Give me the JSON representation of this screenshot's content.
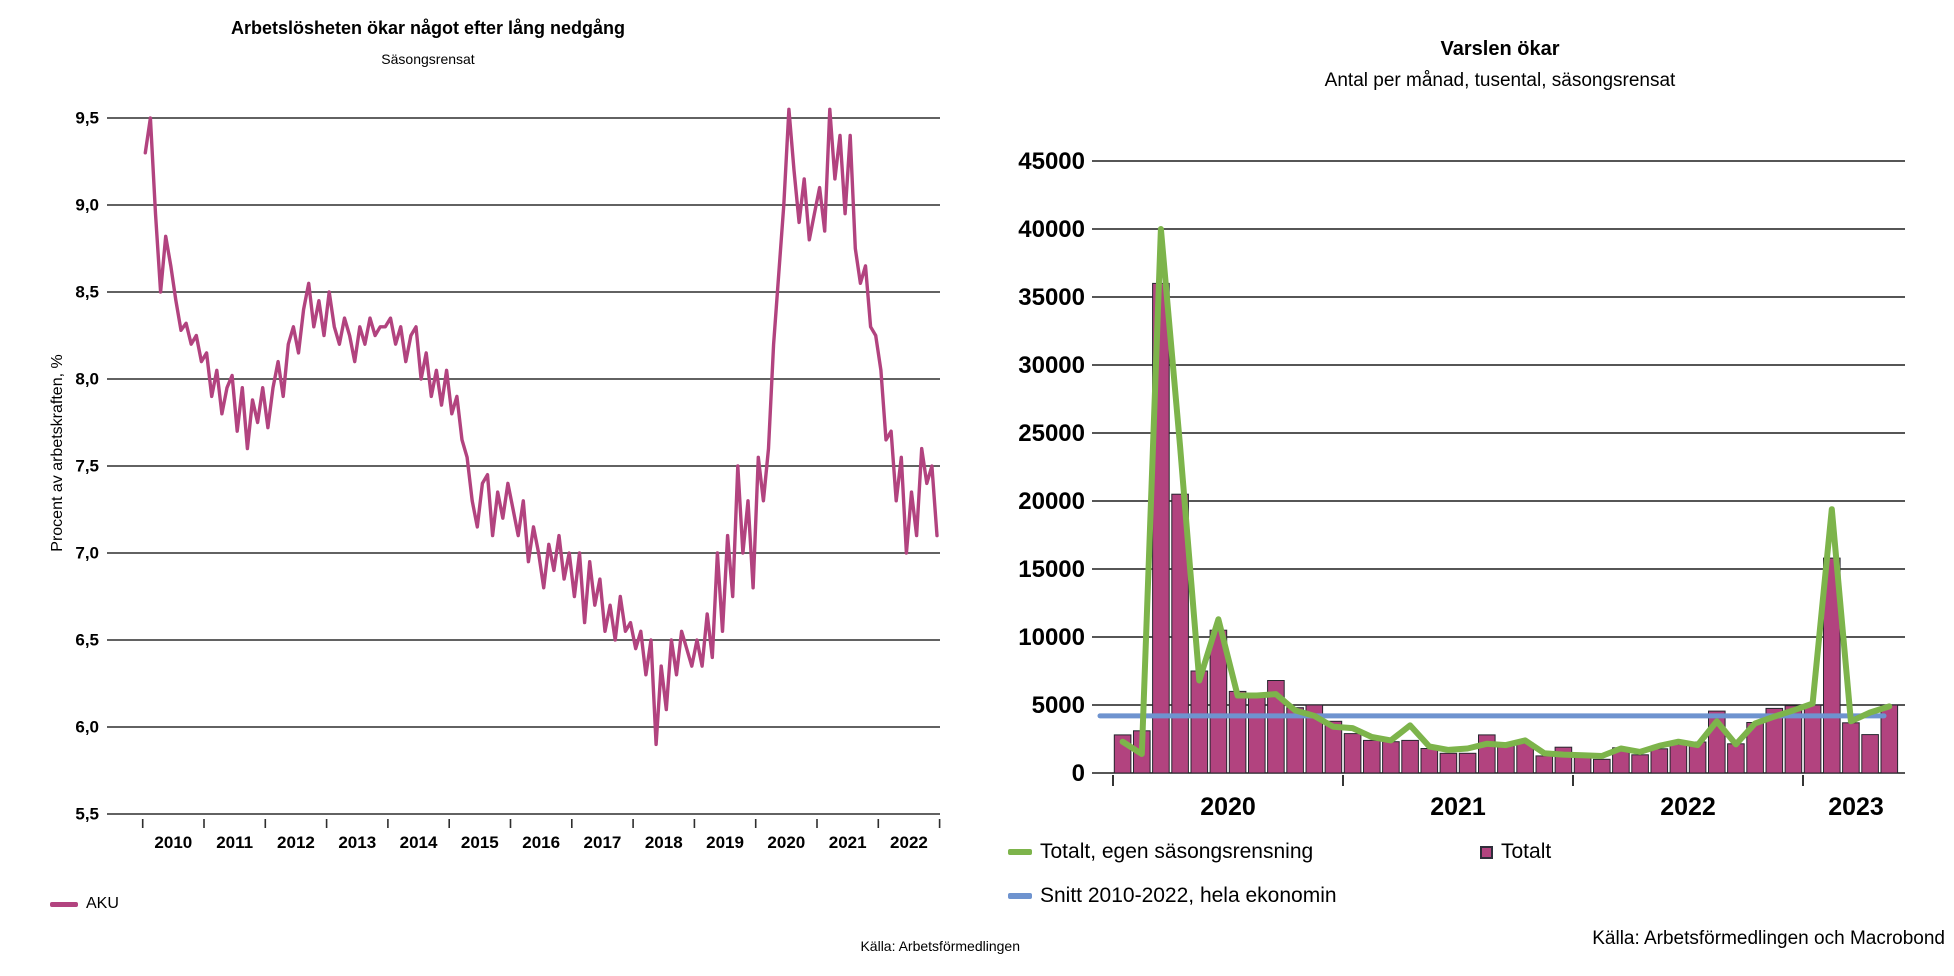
{
  "left_chart": {
    "title": "Arbetslösheten ökar något efter lång nedgång",
    "subtitle": "Säsongsrensat",
    "y_axis_title": "Procent av arbetskraften, %",
    "legend_label": "AKU",
    "source": "Källa: Arbetsförmedlingen"
  },
  "right_chart": {
    "title": "Varslen ökar",
    "subtitle": "Antal per månad, tusental, säsongsrensat",
    "legend_line": "Totalt, egen säsongsrensning",
    "legend_bars": "Totalt",
    "legend_avg": "Snitt 2010-2022, hela ekonomin",
    "source": "Källa: Arbetsförmedlingen och Macrobond"
  },
  "colors": {
    "magenta": "#b2437f",
    "green": "#7db44b",
    "blue": "#6e93cf",
    "grid": "#2e2e2e",
    "bar_border": "#26262e"
  },
  "chart_data": [
    {
      "id": "unemployment",
      "type": "line",
      "title": "Arbetslösheten ökar något efter lång nedgång",
      "subtitle": "Säsongsrensat",
      "ylabel": "Procent av arbetskraften, %",
      "ylim": [
        5.5,
        9.5
      ],
      "grid": true,
      "y_tick_values": [
        9.5,
        9.0,
        8.5,
        8.0,
        7.5,
        7.0,
        6.5,
        6.0,
        5.5
      ],
      "y_tick_labels": [
        "9,5",
        "9,0",
        "8,5",
        "8,0",
        "7,5",
        "7,0",
        "6,5",
        "6,0",
        "5,5"
      ],
      "x_year_labels": [
        "2010",
        "2011",
        "2012",
        "2013",
        "2014",
        "2015",
        "2016",
        "2017",
        "2018",
        "2019",
        "2020",
        "2021",
        "2022"
      ],
      "legend": [
        {
          "label": "AKU",
          "color": "#b2437f"
        }
      ],
      "source": "Källa: Arbetsförmedlingen",
      "series": [
        {
          "name": "AKU",
          "color": "#b2437f",
          "start": "2010-01",
          "frequency": "monthly",
          "values": [
            9.3,
            9.5,
            8.95,
            8.5,
            8.82,
            8.65,
            8.45,
            8.28,
            8.32,
            8.2,
            8.25,
            8.1,
            8.15,
            7.9,
            8.05,
            7.8,
            7.95,
            8.02,
            7.7,
            7.95,
            7.6,
            7.88,
            7.75,
            7.95,
            7.72,
            7.95,
            8.1,
            7.9,
            8.2,
            8.3,
            8.15,
            8.4,
            8.55,
            8.3,
            8.45,
            8.25,
            8.5,
            8.3,
            8.2,
            8.35,
            8.25,
            8.1,
            8.3,
            8.2,
            8.35,
            8.25,
            8.3,
            8.3,
            8.35,
            8.2,
            8.3,
            8.1,
            8.25,
            8.3,
            8.0,
            8.15,
            7.9,
            8.05,
            7.85,
            8.05,
            7.8,
            7.9,
            7.65,
            7.55,
            7.3,
            7.15,
            7.4,
            7.45,
            7.1,
            7.35,
            7.2,
            7.4,
            7.25,
            7.1,
            7.3,
            6.95,
            7.15,
            7.0,
            6.8,
            7.05,
            6.9,
            7.1,
            6.85,
            7.0,
            6.75,
            7.0,
            6.6,
            6.95,
            6.7,
            6.85,
            6.55,
            6.7,
            6.5,
            6.75,
            6.55,
            6.6,
            6.45,
            6.55,
            6.3,
            6.5,
            5.9,
            6.35,
            6.1,
            6.5,
            6.3,
            6.55,
            6.45,
            6.35,
            6.5,
            6.35,
            6.65,
            6.4,
            7.0,
            6.55,
            7.1,
            6.75,
            7.5,
            7.0,
            7.3,
            6.8,
            7.55,
            7.3,
            7.6,
            8.2,
            8.6,
            9.0,
            9.55,
            9.2,
            8.9,
            9.15,
            8.8,
            8.95,
            9.1,
            8.85,
            9.55,
            9.15,
            9.4,
            8.95,
            9.4,
            8.75,
            8.55,
            8.65,
            8.3,
            8.25,
            8.05,
            7.65,
            7.7,
            7.3,
            7.55,
            7.0,
            7.35,
            7.1,
            7.6,
            7.4,
            7.5,
            7.1
          ]
        }
      ]
    },
    {
      "id": "varsel",
      "type": "bar",
      "title": "Varslen ökar",
      "subtitle": "Antal per månad, tusental, säsongsrensat",
      "ylim": [
        0,
        45000
      ],
      "grid": true,
      "y_tick_values": [
        45000,
        40000,
        35000,
        30000,
        25000,
        20000,
        15000,
        10000,
        5000,
        0
      ],
      "y_tick_labels": [
        "45000",
        "40000",
        "35000",
        "30000",
        "25000",
        "20000",
        "15000",
        "10000",
        "5000",
        "0"
      ],
      "x_year_labels": [
        "2020",
        "2021",
        "2022",
        "2023"
      ],
      "months_start": "2020-01",
      "bars": {
        "name": "Totalt",
        "color": "#b2437f",
        "values": [
          2800,
          3100,
          36000,
          20500,
          7500,
          10500,
          6000,
          5600,
          6800,
          4800,
          5000,
          3800,
          2900,
          2400,
          2300,
          2400,
          1800,
          1450,
          1450,
          2800,
          2000,
          2200,
          1260,
          1900,
          1330,
          1010,
          1850,
          1340,
          1780,
          2100,
          2280,
          4550,
          2150,
          3710,
          4750,
          4950,
          5000,
          15800,
          3690,
          2820,
          5000
        ]
      },
      "line": {
        "name": "Totalt, egen säsongsrensning",
        "color": "#7db44b",
        "values": [
          2300,
          1400,
          40000,
          24000,
          6800,
          11300,
          5700,
          5700,
          5800,
          4600,
          4200,
          3400,
          3300,
          2650,
          2400,
          3500,
          1950,
          1700,
          1800,
          2150,
          2050,
          2400,
          1450,
          1350,
          1300,
          1250,
          1800,
          1550,
          2000,
          2300,
          2050,
          3800,
          2100,
          3650,
          4150,
          4600,
          5100,
          19400,
          3800,
          4450,
          4900
        ]
      },
      "avg_line": {
        "name": "Snitt 2010-2022, hela ekonomin",
        "color": "#6e93cf",
        "value": 4200
      },
      "source": "Källa: Arbetsförmedlingen och Macrobond"
    }
  ]
}
